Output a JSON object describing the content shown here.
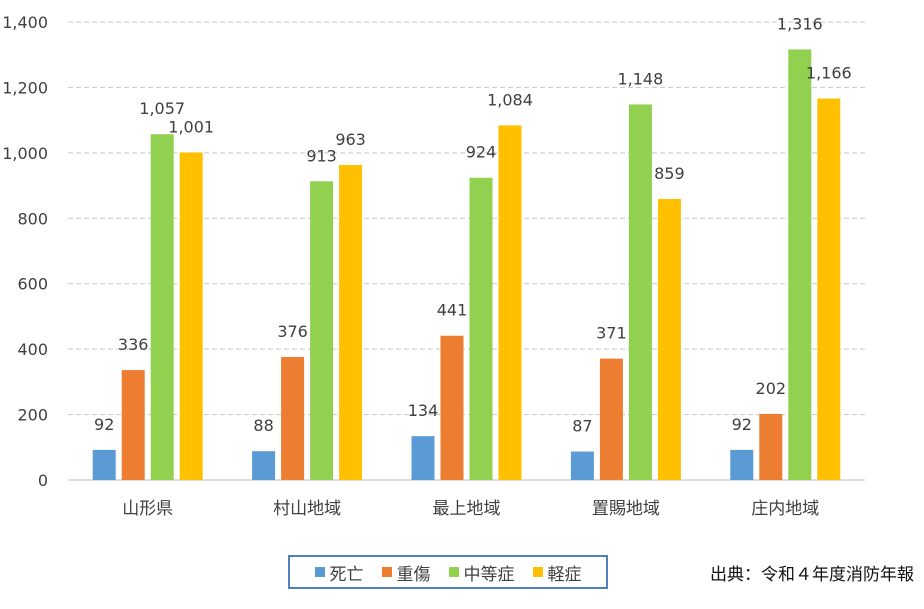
{
  "chart_data": {
    "type": "bar",
    "categories": [
      "山形県",
      "村山地域",
      "最上地域",
      "置賜地域",
      "庄内地域"
    ],
    "series": [
      {
        "name": "死亡",
        "color": "#5b9bd5",
        "values": [
          92,
          88,
          134,
          87,
          92
        ],
        "labels": [
          "92",
          "88",
          "134",
          "87",
          "92"
        ]
      },
      {
        "name": "重傷",
        "color": "#ed7d31",
        "values": [
          336,
          376,
          441,
          371,
          202
        ],
        "labels": [
          "336",
          "376",
          "441",
          "371",
          "202"
        ]
      },
      {
        "name": "中等症",
        "color": "#92d050",
        "values": [
          1057,
          913,
          924,
          1148,
          1316
        ],
        "labels": [
          "1,057",
          "913",
          "924",
          "1,148",
          "1,316"
        ]
      },
      {
        "name": "軽症",
        "color": "#ffc000",
        "values": [
          1001,
          963,
          1084,
          859,
          1166
        ],
        "labels": [
          "1,001",
          "963",
          "1,084",
          "859",
          "1,166"
        ]
      }
    ],
    "ylim": [
      0,
      1400
    ],
    "yticks": [
      0,
      200,
      400,
      600,
      800,
      1000,
      1200,
      1400
    ],
    "ytick_labels": [
      "0",
      "200",
      "400",
      "600",
      "800",
      "1,000",
      "1,200",
      "1,400"
    ],
    "grid": true,
    "legend_position": "bottom"
  },
  "source_note": "出典：令和４年度消防年報"
}
